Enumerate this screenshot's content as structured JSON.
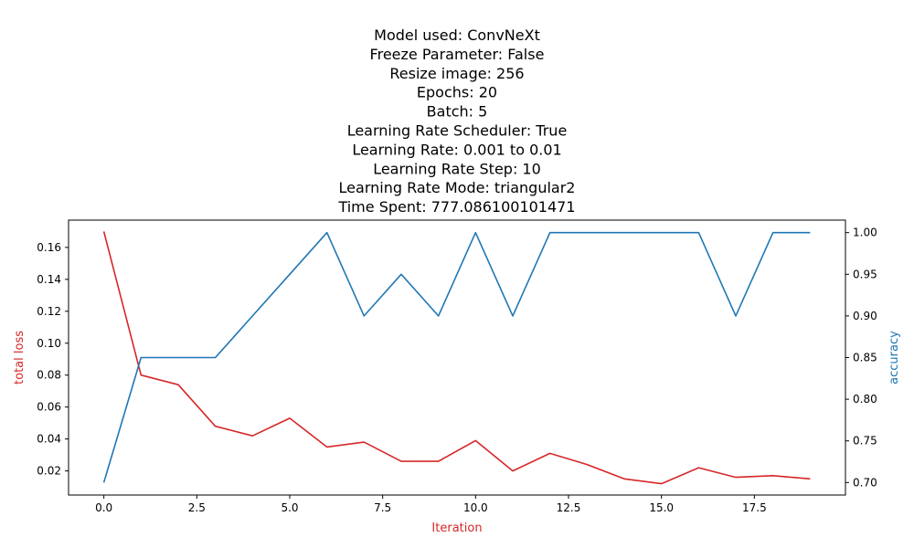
{
  "chart_data": {
    "type": "line",
    "title_lines": [
      "Model used: ConvNeXt",
      "Freeze Parameter: False",
      "Resize image: 256",
      "Epochs: 20",
      "Batch: 5",
      "Learning Rate Scheduler: True",
      "Learning Rate: 0.001 to 0.01",
      "Learning Rate Step: 10",
      "Learning Rate Mode: triangular2",
      "Time Spent: 777.086100101471"
    ],
    "xlabel": "Iteration",
    "ylabel_left": "total loss",
    "ylabel_right": "accuracy",
    "xlim": [
      -0.95,
      19.95
    ],
    "ylim_left": [
      0.0049,
      0.1771
    ],
    "ylim_right": [
      0.685,
      1.015
    ],
    "x_ticks": [
      0.0,
      2.5,
      5.0,
      7.5,
      10.0,
      12.5,
      15.0,
      17.5
    ],
    "x_tick_labels": [
      "0.0",
      "2.5",
      "5.0",
      "7.5",
      "10.0",
      "12.5",
      "15.0",
      "17.5"
    ],
    "y_left_ticks": [
      0.02,
      0.04,
      0.06,
      0.08,
      0.1,
      0.12,
      0.14,
      0.16
    ],
    "y_left_tick_labels": [
      "0.02",
      "0.04",
      "0.06",
      "0.08",
      "0.10",
      "0.12",
      "0.14",
      "0.16"
    ],
    "y_right_ticks": [
      0.7,
      0.75,
      0.8,
      0.85,
      0.9,
      0.95,
      1.0
    ],
    "y_right_tick_labels": [
      "0.70",
      "0.75",
      "0.80",
      "0.85",
      "0.90",
      "0.95",
      "1.00"
    ],
    "grid": false,
    "x": [
      0,
      1,
      2,
      3,
      4,
      5,
      6,
      7,
      8,
      9,
      10,
      11,
      12,
      13,
      14,
      15,
      16,
      17,
      18,
      19
    ],
    "series": [
      {
        "axis": "left",
        "color": "#d62728",
        "values": [
          0.17,
          0.08,
          0.074,
          0.048,
          0.042,
          0.053,
          0.035,
          0.038,
          0.026,
          0.026,
          0.039,
          0.02,
          0.031,
          0.024,
          0.015,
          0.012,
          0.022,
          0.016,
          0.017,
          0.015
        ]
      },
      {
        "axis": "right",
        "color": "#1f77b4",
        "values": [
          0.7,
          0.85,
          0.85,
          0.85,
          0.9,
          0.95,
          1.0,
          0.9,
          0.95,
          0.9,
          1.0,
          0.9,
          1.0,
          1.0,
          1.0,
          1.0,
          1.0,
          0.9,
          1.0,
          1.0
        ]
      }
    ],
    "colors": {
      "loss": "#d62728",
      "accuracy": "#1f77b4",
      "axes": "#000000"
    }
  }
}
